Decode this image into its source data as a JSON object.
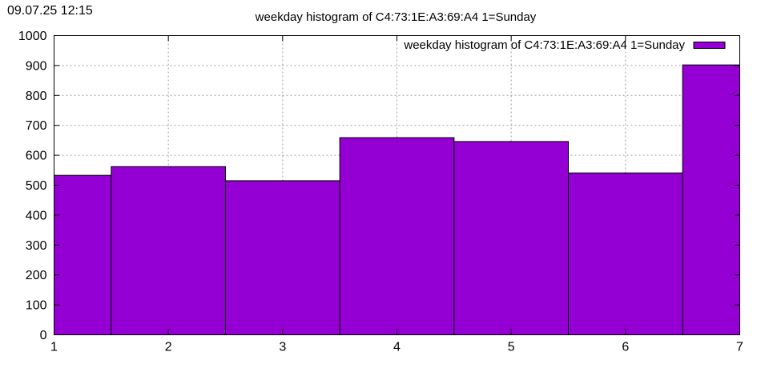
{
  "timestamp": "09.07.25 12:15",
  "chart_data": {
    "type": "bar",
    "title": "weekday histogram of C4:73:1E:A3:69:A4 1=Sunday",
    "xlabel": "",
    "ylabel": "",
    "x": [
      1,
      2,
      3,
      4,
      5,
      6,
      7
    ],
    "xlim": [
      1,
      7
    ],
    "ylim": [
      0,
      1000
    ],
    "x_ticks": [
      "1",
      "2",
      "3",
      "4",
      "5",
      "6",
      "7"
    ],
    "y_ticks": [
      "0",
      "100",
      "200",
      "300",
      "400",
      "500",
      "600",
      "700",
      "800",
      "900",
      "1000"
    ],
    "grid": true,
    "legend_position": "top-right",
    "series": [
      {
        "name": "weekday histogram of C4:73:1E:A3:69:A4 1=Sunday",
        "color": "#9400d3",
        "values": [
          533,
          562,
          515,
          659,
          646,
          541,
          902
        ]
      }
    ]
  }
}
